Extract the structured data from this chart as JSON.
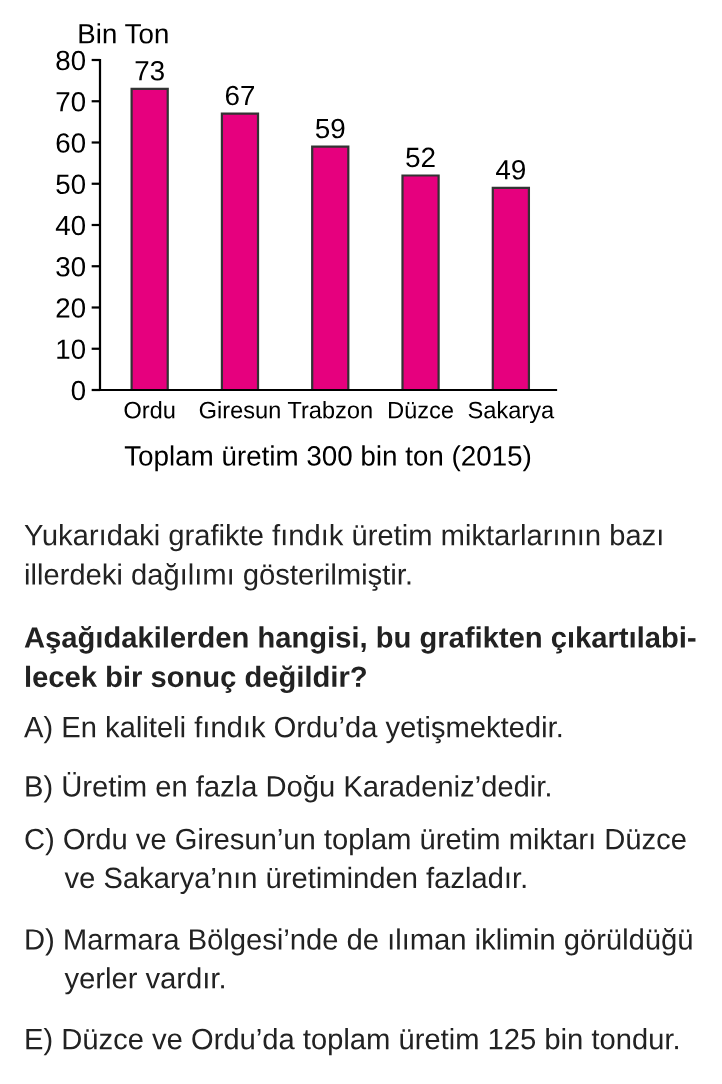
{
  "chart_data": {
    "type": "bar",
    "categories": [
      "Ordu",
      "Giresun",
      "Trabzon",
      "Düzce",
      "Sakarya"
    ],
    "values": [
      73,
      67,
      59,
      52,
      49
    ],
    "color": "#e6007e",
    "ylabel": "Bin Ton",
    "xlabel": "Toplam üretim 300 bin ton (2015)",
    "ylim": [
      0,
      80
    ],
    "yticks": [
      0,
      10,
      20,
      30,
      40,
      50,
      60,
      70,
      80
    ],
    "data_labels": true,
    "grid": false,
    "legend": false,
    "annotations": [
      "Yukarıdaki grafikte fındık üretim miktarlarının bazı\nillerdeki dağılımı gösterilmiştir.",
      "Aşağıdakilerden hangisi, bu grafikten çıkartılabi-\nlecek bir sonuç değildir?",
      "A) En kaliteli fındık Ordu’da yetişmektedir.",
      "B) Üretim en fazla Doğu Karadeniz’dedir.",
      "C) Ordu ve Giresun’un toplam üretim miktarı Düzce\n     ve Sakarya’nın üretiminden fazladır.",
      "D) Marmara Bölgesi’nde de ılıman iklimin görüldüğü\n     yerler vardır.",
      "E) Düzce ve Ordu’da toplam üretim 125 bin tondur."
    ]
  }
}
